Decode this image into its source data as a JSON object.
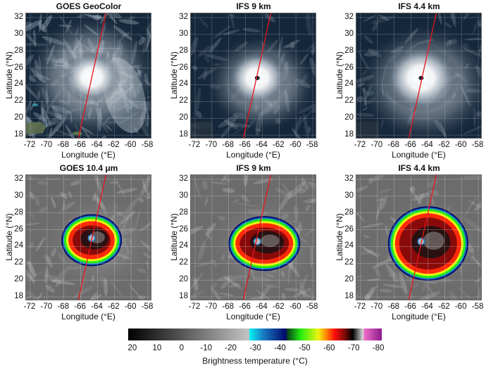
{
  "chart_data": {
    "type": "heatmap",
    "layout": {
      "rows": 2,
      "cols": 3,
      "grid": true,
      "grid_spacing_deg": 2
    },
    "axes": {
      "xlabel": "Longitude (°E)",
      "ylabel": "Latitude (°N)",
      "xticks": [
        "-72",
        "-70",
        "-68",
        "-66",
        "-64",
        "-62",
        "-60",
        "-58"
      ],
      "yticks": [
        "32",
        "30",
        "28",
        "26",
        "24",
        "22",
        "20",
        "18"
      ],
      "xlim": [
        -72.5,
        -57.5
      ],
      "ylim": [
        17.5,
        32.5
      ]
    },
    "panels": [
      {
        "title": "GOES GeoColor",
        "kind": "visible",
        "storm_center": [
          -64.7,
          24.9
        ],
        "transect": {
          "start": [
            -66.3,
            17.5
          ],
          "end": [
            -63.0,
            32.5
          ],
          "color": "#e8141c"
        }
      },
      {
        "title": "IFS 9 km",
        "kind": "visible",
        "storm_center": [
          -64.6,
          24.8
        ],
        "transect": {
          "start": [
            -66.3,
            17.5
          ],
          "end": [
            -63.0,
            32.5
          ],
          "color": "#e8141c"
        }
      },
      {
        "title": "IFS 4.4 km",
        "kind": "visible",
        "storm_center": [
          -64.8,
          24.8
        ],
        "transect": {
          "start": [
            -66.3,
            17.5
          ],
          "end": [
            -63.0,
            32.5
          ],
          "color": "#e8141c"
        }
      },
      {
        "title": "GOES 10.4 μm",
        "kind": "infrared",
        "storm_center": [
          -64.7,
          25.0
        ],
        "transect": {
          "start": [
            -66.3,
            17.5
          ],
          "end": [
            -63.0,
            32.5
          ],
          "color": "#e8141c"
        }
      },
      {
        "title": "IFS 9 km",
        "kind": "infrared",
        "storm_center": [
          -64.6,
          24.6
        ],
        "transect": {
          "start": [
            -66.3,
            17.5
          ],
          "end": [
            -63.0,
            32.5
          ],
          "color": "#e8141c"
        }
      },
      {
        "title": "IFS 4.4 km",
        "kind": "infrared",
        "storm_center": [
          -64.8,
          24.6
        ],
        "transect": {
          "start": [
            -66.3,
            17.5
          ],
          "end": [
            -63.0,
            32.5
          ],
          "color": "#e8141c"
        }
      }
    ],
    "colorbar": {
      "label": "Brightness temperature (°C)",
      "ticks": [
        "20",
        "10",
        "0",
        "-10",
        "-20",
        "-30",
        "-40",
        "-50",
        "-60",
        "-70",
        "-80"
      ],
      "range": [
        21.7,
        -81.4
      ],
      "stops": [
        {
          "value": 21.7,
          "color": "#000000"
        },
        {
          "value": -27.5,
          "color": "#c4c4c4"
        },
        {
          "value": -27.6,
          "color": "#00f4f4"
        },
        {
          "value": -33,
          "color": "#1b7fc6"
        },
        {
          "value": -42,
          "color": "#000a6a"
        },
        {
          "value": -43,
          "color": "#0a4a1a"
        },
        {
          "value": -48,
          "color": "#22ee10"
        },
        {
          "value": -55,
          "color": "#eef410"
        },
        {
          "value": -58,
          "color": "#ff8a00"
        },
        {
          "value": -62,
          "color": "#ff0a0a"
        },
        {
          "value": -66,
          "color": "#7a0a0a"
        },
        {
          "value": -69,
          "color": "#000000"
        },
        {
          "value": -73.5,
          "color": "#e0e0e0"
        },
        {
          "value": -73.6,
          "color": "#f070c8"
        },
        {
          "value": -81.4,
          "color": "#8a1a8a"
        }
      ]
    }
  },
  "figure": {
    "panel_titles": [
      "GOES GeoColor",
      "IFS 9 km",
      "IFS 4.4 km",
      "GOES 10.4 μm",
      "IFS 9 km",
      "IFS 4.4 km"
    ],
    "xlabel": "Longitude (°E)",
    "ylabel": "Latitude (°N)",
    "xticks": [
      "-72",
      "-70",
      "-68",
      "-66",
      "-64",
      "-62",
      "-60",
      "-58"
    ],
    "yticks": [
      "32",
      "30",
      "28",
      "26",
      "24",
      "22",
      "20",
      "18"
    ],
    "colorbar_label": "Brightness temperature (°C)",
    "colorbar_ticks": [
      "20",
      "10",
      "0",
      "-10",
      "-20",
      "-30",
      "-40",
      "-50",
      "-60",
      "-70",
      "-80"
    ]
  }
}
